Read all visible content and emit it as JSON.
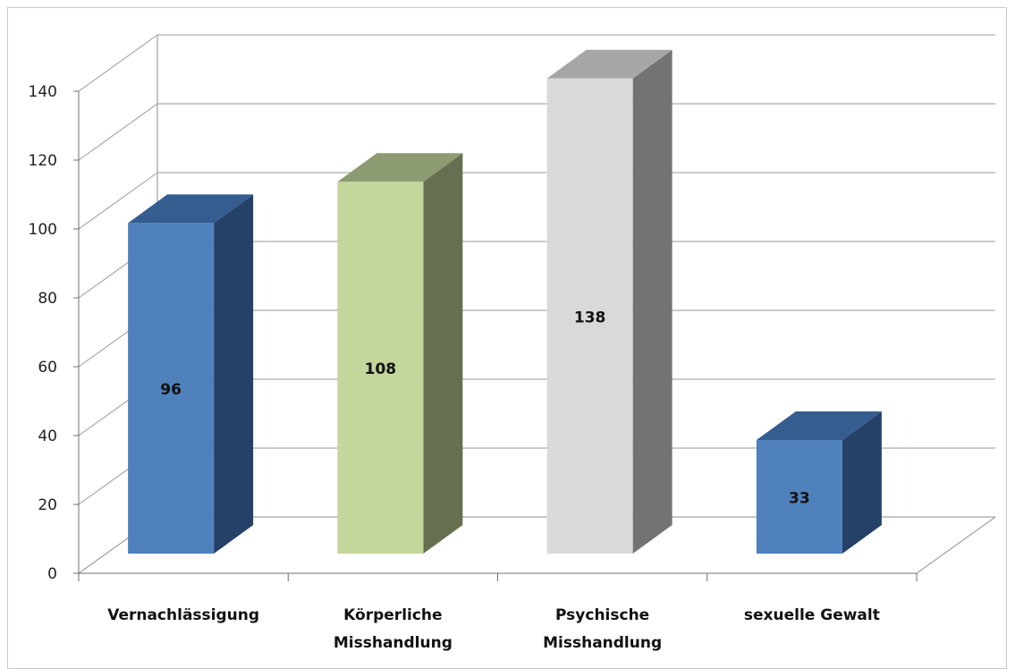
{
  "chart_data": {
    "type": "bar",
    "title": "",
    "xlabel": "",
    "ylabel": "",
    "categories": [
      [
        "Vernachlässigung"
      ],
      [
        "Körperliche",
        "Misshandlung"
      ],
      [
        "Psychische",
        "Misshandlung"
      ],
      [
        "sexuelle Gewalt"
      ]
    ],
    "values": [
      96,
      108,
      138,
      33
    ],
    "data_labels": [
      "96",
      "108",
      "138",
      "33"
    ],
    "ylim": [
      0,
      140
    ],
    "yticks": [
      0,
      20,
      40,
      60,
      80,
      100,
      120,
      140
    ],
    "ytick_labels": [
      "0",
      "20",
      "40",
      "60",
      "80",
      "100",
      "120",
      "140"
    ],
    "grid": true,
    "style": "3d-column",
    "colors": [
      {
        "front": "#4f81bd",
        "side": "#254168",
        "top": "#365d8f"
      },
      {
        "front": "#c3d69b",
        "side": "#667050",
        "top": "#8d9b72"
      },
      {
        "front": "#d9d9d9",
        "side": "#737373",
        "top": "#a6a6a6"
      },
      {
        "front": "#4f81bd",
        "side": "#254168",
        "top": "#365d8f"
      }
    ]
  }
}
